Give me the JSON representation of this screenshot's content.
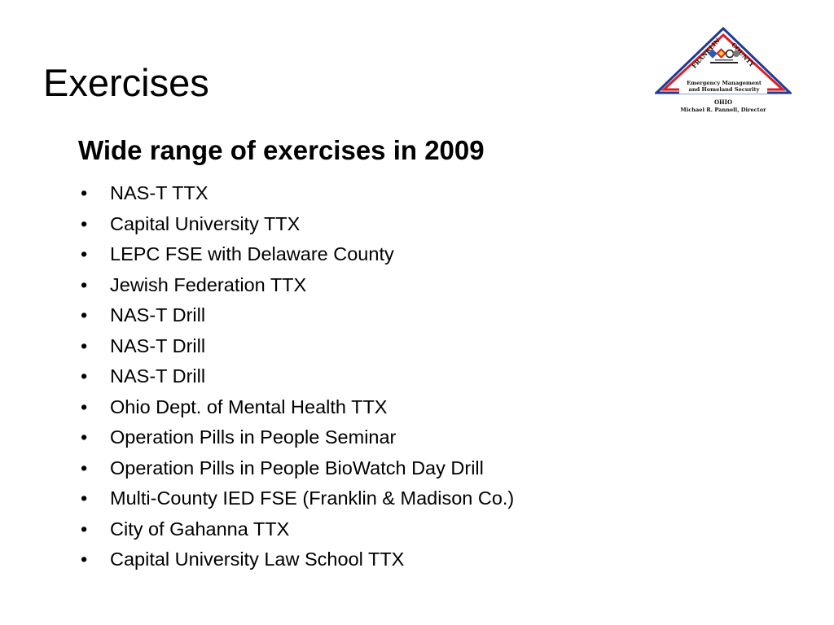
{
  "slide": {
    "title": "Exercises",
    "subheading": "Wide range of exercises in 2009",
    "bullets": [
      "NAS-T TTX",
      "Capital University TTX",
      "LEPC FSE with Delaware County",
      "Jewish Federation TTX",
      "NAS-T Drill",
      "NAS-T Drill",
      "NAS-T Drill",
      "Ohio Dept. of Mental Health TTX",
      "Operation Pills in People Seminar",
      "Operation Pills in People BioWatch Day Drill",
      "Multi-County IED FSE (Franklin & Madison Co.)",
      "City of Gahanna TTX",
      "Capital University Law School TTX"
    ]
  },
  "logo": {
    "name": "franklin-county-ema-logo",
    "text_franklin": "FRANKLIN",
    "text_county": "COUNTY",
    "line1": "Emergency Management",
    "line2": "and Homeland Security",
    "line3": "OHIO",
    "line4": "Michael R. Pannell, Director",
    "colors": {
      "outer_triangle": "#1f3a93",
      "inner_triangle": "#d81f26",
      "text": "#111111"
    }
  }
}
